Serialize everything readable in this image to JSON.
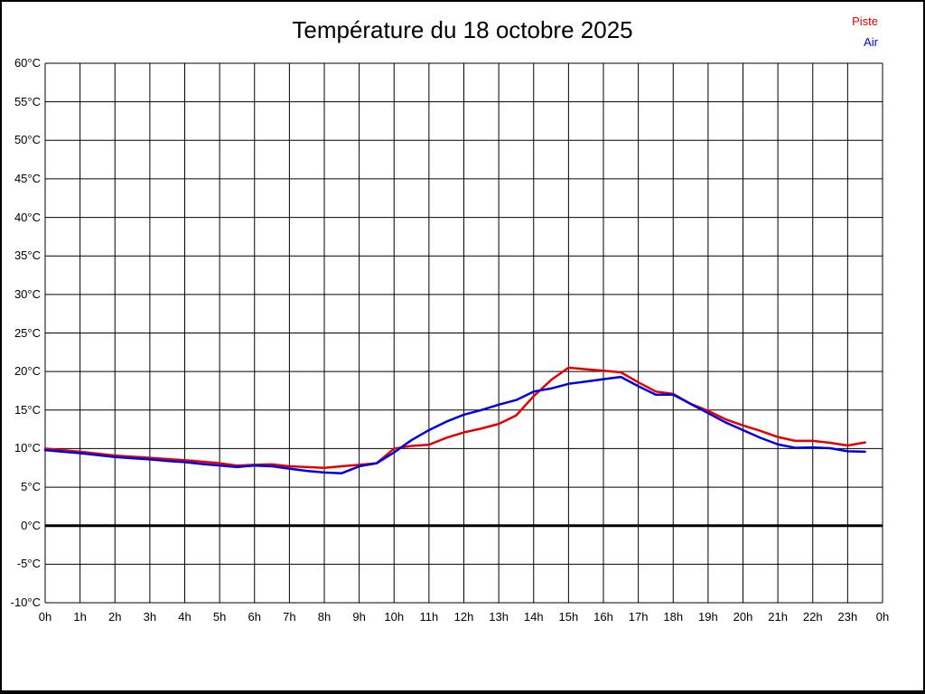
{
  "header": {
    "title": "Température du 18 octobre 2025"
  },
  "legend": [
    {
      "label": "Piste",
      "color": "#e60000"
    },
    {
      "label": "Air",
      "color": "#0000e6"
    }
  ],
  "chart_data": {
    "type": "line",
    "title": "Température du 18 octobre 2025",
    "xlabel": "",
    "ylabel": "",
    "xlim": [
      0,
      24
    ],
    "ylim": [
      -10,
      60
    ],
    "grid": true,
    "legend_position": "top-right",
    "zero_line_value": 0,
    "y_ticks": [
      {
        "value": 60,
        "label": "60°C"
      },
      {
        "value": 55,
        "label": "55°C"
      },
      {
        "value": 50,
        "label": "50°C"
      },
      {
        "value": 45,
        "label": "45°C"
      },
      {
        "value": 40,
        "label": "40°C"
      },
      {
        "value": 35,
        "label": "35°C"
      },
      {
        "value": 30,
        "label": "30°C"
      },
      {
        "value": 25,
        "label": "25°C"
      },
      {
        "value": 20,
        "label": "20°C"
      },
      {
        "value": 15,
        "label": "15°C"
      },
      {
        "value": 10,
        "label": "10°C"
      },
      {
        "value": 5,
        "label": "5°C"
      },
      {
        "value": 0,
        "label": "0°C"
      },
      {
        "value": -5,
        "label": "-5°C"
      },
      {
        "value": -10,
        "label": "-10°C"
      }
    ],
    "x_ticks": [
      {
        "value": 0,
        "label": "0h"
      },
      {
        "value": 1,
        "label": "1h"
      },
      {
        "value": 2,
        "label": "2h"
      },
      {
        "value": 3,
        "label": "3h"
      },
      {
        "value": 4,
        "label": "4h"
      },
      {
        "value": 5,
        "label": "5h"
      },
      {
        "value": 6,
        "label": "6h"
      },
      {
        "value": 7,
        "label": "7h"
      },
      {
        "value": 8,
        "label": "8h"
      },
      {
        "value": 9,
        "label": "9h"
      },
      {
        "value": 10,
        "label": "10h"
      },
      {
        "value": 11,
        "label": "11h"
      },
      {
        "value": 12,
        "label": "12h"
      },
      {
        "value": 13,
        "label": "13h"
      },
      {
        "value": 14,
        "label": "14h"
      },
      {
        "value": 15,
        "label": "15h"
      },
      {
        "value": 16,
        "label": "16h"
      },
      {
        "value": 17,
        "label": "17h"
      },
      {
        "value": 18,
        "label": "18h"
      },
      {
        "value": 19,
        "label": "19h"
      },
      {
        "value": 20,
        "label": "20h"
      },
      {
        "value": 21,
        "label": "21h"
      },
      {
        "value": 22,
        "label": "22h"
      },
      {
        "value": 23,
        "label": "23h"
      },
      {
        "value": 24,
        "label": "0h"
      }
    ],
    "series": [
      {
        "name": "Piste",
        "color": "#e60000",
        "x": [
          0,
          0.5,
          1,
          1.5,
          2,
          2.5,
          3,
          3.5,
          4,
          4.5,
          5,
          5.5,
          6,
          6.5,
          7,
          7.5,
          8,
          8.5,
          9,
          9.5,
          10,
          10.5,
          11,
          11.5,
          12,
          12.5,
          13,
          13.5,
          14,
          14.5,
          15,
          15.5,
          16,
          16.5,
          17,
          17.5,
          18,
          18.5,
          19,
          19.5,
          20,
          20.5,
          21,
          21.5,
          22,
          22.5,
          23,
          23.5
        ],
        "values": [
          10.0,
          9.8,
          9.6,
          9.35,
          9.1,
          8.95,
          8.8,
          8.65,
          8.5,
          8.3,
          8.1,
          7.8,
          7.9,
          7.95,
          7.7,
          7.6,
          7.5,
          7.7,
          7.9,
          8.1,
          10.0,
          10.35,
          10.5,
          11.4,
          12.1,
          12.6,
          13.2,
          14.3,
          16.8,
          18.9,
          20.5,
          20.3,
          20.1,
          19.9,
          18.6,
          17.4,
          17.1,
          15.8,
          14.9,
          13.8,
          13.0,
          12.3,
          11.5,
          11.0,
          11.0,
          10.75,
          10.4,
          10.8
        ]
      },
      {
        "name": "Air",
        "color": "#0000e6",
        "x": [
          0,
          0.5,
          1,
          1.5,
          2,
          2.5,
          3,
          3.5,
          4,
          4.5,
          5,
          5.5,
          6,
          6.5,
          7,
          7.5,
          8,
          8.5,
          9,
          9.5,
          10,
          10.5,
          11,
          11.5,
          12,
          12.5,
          13,
          13.5,
          14,
          14.5,
          15,
          15.5,
          16,
          16.5,
          17,
          17.5,
          18,
          18.5,
          19,
          19.5,
          20,
          20.5,
          21,
          21.5,
          22,
          22.5,
          23,
          23.5
        ],
        "values": [
          9.8,
          9.6,
          9.4,
          9.15,
          8.9,
          8.75,
          8.6,
          8.4,
          8.25,
          8.0,
          7.8,
          7.6,
          7.8,
          7.7,
          7.4,
          7.1,
          6.9,
          6.8,
          7.7,
          8.1,
          9.5,
          11.1,
          12.4,
          13.5,
          14.4,
          15.0,
          15.7,
          16.3,
          17.4,
          17.8,
          18.4,
          18.7,
          19.0,
          19.3,
          18.1,
          17.0,
          17.0,
          15.8,
          14.6,
          13.4,
          12.4,
          11.4,
          10.55,
          10.1,
          10.15,
          10.05,
          9.65,
          9.6
        ]
      }
    ]
  }
}
